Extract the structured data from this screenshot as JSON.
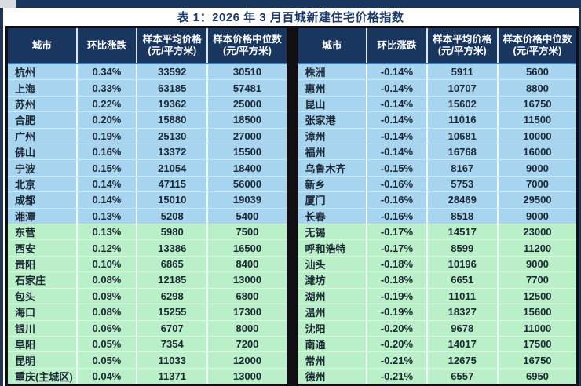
{
  "title": "表 1：2026 年 3 月百城新建住宅价格指数",
  "colors": {
    "header_navy": "#18365e",
    "blue_zone_row": "#a7d5f0",
    "green_zone_row": "#b9f0c8",
    "frame_black": "#101014",
    "header_text": "#ffffff",
    "body_text": "#1b2733"
  },
  "table": {
    "headers": [
      {
        "line1": "城市",
        "line2": ""
      },
      {
        "line1": "环比涨跌",
        "line2": ""
      },
      {
        "line1": "样本平均价格",
        "line2": "(元/平方米)"
      },
      {
        "line1": "样本价格中位数",
        "line2": "(元/平方米)"
      }
    ],
    "left_rows": [
      {
        "city": "杭州",
        "change": "0.34%",
        "avg": "33592",
        "median": "30510",
        "zone": "blue"
      },
      {
        "city": "上海",
        "change": "0.33%",
        "avg": "63185",
        "median": "57481",
        "zone": "blue"
      },
      {
        "city": "苏州",
        "change": "0.22%",
        "avg": "19362",
        "median": "25000",
        "zone": "blue"
      },
      {
        "city": "合肥",
        "change": "0.20%",
        "avg": "15880",
        "median": "18500",
        "zone": "blue"
      },
      {
        "city": "广州",
        "change": "0.19%",
        "avg": "25130",
        "median": "27000",
        "zone": "blue"
      },
      {
        "city": "佛山",
        "change": "0.16%",
        "avg": "13372",
        "median": "15500",
        "zone": "blue"
      },
      {
        "city": "宁波",
        "change": "0.15%",
        "avg": "21054",
        "median": "18400",
        "zone": "blue"
      },
      {
        "city": "北京",
        "change": "0.14%",
        "avg": "47115",
        "median": "56000",
        "zone": "blue"
      },
      {
        "city": "成都",
        "change": "0.14%",
        "avg": "15010",
        "median": "19039",
        "zone": "blue"
      },
      {
        "city": "湘潭",
        "change": "0.13%",
        "avg": "5208",
        "median": "5400",
        "zone": "blue"
      },
      {
        "city": "东营",
        "change": "0.13%",
        "avg": "5980",
        "median": "7500",
        "zone": "green"
      },
      {
        "city": "西安",
        "change": "0.12%",
        "avg": "13386",
        "median": "16500",
        "zone": "green"
      },
      {
        "city": "贵阳",
        "change": "0.10%",
        "avg": "6865",
        "median": "8400",
        "zone": "green"
      },
      {
        "city": "石家庄",
        "change": "0.08%",
        "avg": "12185",
        "median": "13000",
        "zone": "green"
      },
      {
        "city": "包头",
        "change": "0.08%",
        "avg": "6298",
        "median": "6800",
        "zone": "green"
      },
      {
        "city": "海口",
        "change": "0.08%",
        "avg": "15255",
        "median": "17300",
        "zone": "green"
      },
      {
        "city": "银川",
        "change": "0.06%",
        "avg": "6707",
        "median": "8000",
        "zone": "green"
      },
      {
        "city": "阜阳",
        "change": "0.05%",
        "avg": "7354",
        "median": "7200",
        "zone": "green"
      },
      {
        "city": "昆明",
        "change": "0.05%",
        "avg": "11033",
        "median": "12000",
        "zone": "green"
      },
      {
        "city": "重庆(主城区)",
        "change": "0.04%",
        "avg": "11371",
        "median": "13000",
        "zone": "green"
      }
    ],
    "right_rows": [
      {
        "city": "株洲",
        "change": "-0.14%",
        "avg": "5911",
        "median": "5600",
        "zone": "blue"
      },
      {
        "city": "惠州",
        "change": "-0.14%",
        "avg": "10707",
        "median": "8800",
        "zone": "blue"
      },
      {
        "city": "昆山",
        "change": "-0.14%",
        "avg": "15602",
        "median": "16750",
        "zone": "blue"
      },
      {
        "city": "张家港",
        "change": "-0.14%",
        "avg": "11016",
        "median": "11500",
        "zone": "blue"
      },
      {
        "city": "漳州",
        "change": "-0.14%",
        "avg": "10681",
        "median": "10000",
        "zone": "blue"
      },
      {
        "city": "福州",
        "change": "-0.14%",
        "avg": "16768",
        "median": "16000",
        "zone": "blue"
      },
      {
        "city": "乌鲁木齐",
        "change": "-0.15%",
        "avg": "8167",
        "median": "9000",
        "zone": "blue"
      },
      {
        "city": "新乡",
        "change": "-0.16%",
        "avg": "5753",
        "median": "7000",
        "zone": "blue"
      },
      {
        "city": "厦门",
        "change": "-0.16%",
        "avg": "28469",
        "median": "29500",
        "zone": "blue"
      },
      {
        "city": "长春",
        "change": "-0.16%",
        "avg": "8518",
        "median": "9000",
        "zone": "blue"
      },
      {
        "city": "无锡",
        "change": "-0.17%",
        "avg": "14517",
        "median": "23000",
        "zone": "green"
      },
      {
        "city": "呼和浩特",
        "change": "-0.17%",
        "avg": "8599",
        "median": "11200",
        "zone": "green"
      },
      {
        "city": "汕头",
        "change": "-0.18%",
        "avg": "10196",
        "median": "9000",
        "zone": "green"
      },
      {
        "city": "潍坊",
        "change": "-0.18%",
        "avg": "6651",
        "median": "7700",
        "zone": "green"
      },
      {
        "city": "湖州",
        "change": "-0.19%",
        "avg": "11011",
        "median": "12500",
        "zone": "green"
      },
      {
        "city": "温州",
        "change": "-0.19%",
        "avg": "18327",
        "median": "15600",
        "zone": "green"
      },
      {
        "city": "沈阳",
        "change": "-0.20%",
        "avg": "9678",
        "median": "11000",
        "zone": "green"
      },
      {
        "city": "南通",
        "change": "-0.20%",
        "avg": "14017",
        "median": "17500",
        "zone": "green"
      },
      {
        "city": "常州",
        "change": "-0.21%",
        "avg": "12675",
        "median": "16750",
        "zone": "green"
      },
      {
        "city": "德州",
        "change": "-0.21%",
        "avg": "6557",
        "median": "6950",
        "zone": "green"
      }
    ]
  }
}
